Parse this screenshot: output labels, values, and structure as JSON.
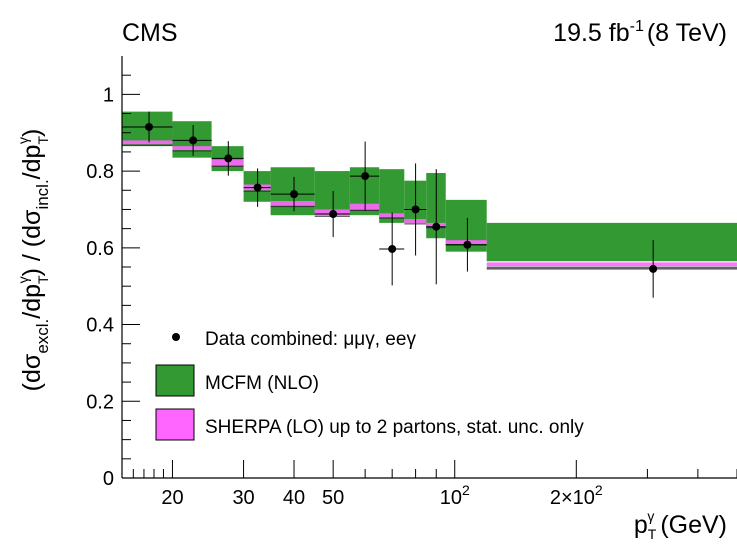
{
  "header": {
    "experiment": "CMS",
    "lumi_value": "19.5 fb",
    "lumi_exponent": "-1",
    "lumi_energy": "(8 TeV)"
  },
  "colors": {
    "mcfm_fill": "#339933",
    "sherpa_fill": "#ff66ff",
    "data_marker": "#000000"
  },
  "chart_data": {
    "type": "scatter",
    "x_scale": "log",
    "xlim": [
      15,
      500
    ],
    "ylim": [
      0,
      1.1
    ],
    "grid": false,
    "legend_placement": "bottom-left",
    "xlabel": {
      "base": "p",
      "sub": "T",
      "sup": "γ",
      "unit": "(GeV)"
    },
    "ylabel": {
      "open1": "(dσ",
      "sub1": "excl.",
      "mid1": "/dp",
      "sub2": "T",
      "sup2": "γ",
      "mid2": ") / (dσ",
      "sub3": "incl.",
      "mid3": "/dp",
      "sub4": "T",
      "sup4": "γ",
      "close": ")"
    },
    "x_ticks": [
      {
        "value": 20,
        "label": "20"
      },
      {
        "value": 30,
        "label": "30"
      },
      {
        "value": 40,
        "label": "40"
      },
      {
        "value": 50,
        "label": "50"
      },
      {
        "value": 100,
        "label": "10",
        "sup": "2"
      },
      {
        "value": 200,
        "label": "2×10",
        "sup": "2"
      }
    ],
    "y_ticks": [
      {
        "value": 0,
        "label": "0"
      },
      {
        "value": 0.2,
        "label": "0.2"
      },
      {
        "value": 0.4,
        "label": "0.4"
      },
      {
        "value": 0.6,
        "label": "0.6"
      },
      {
        "value": 0.8,
        "label": "0.8"
      },
      {
        "value": 1.0,
        "label": "1"
      }
    ],
    "bins": [
      [
        15,
        20
      ],
      [
        20,
        25
      ],
      [
        25,
        30
      ],
      [
        30,
        35
      ],
      [
        35,
        45
      ],
      [
        45,
        55
      ],
      [
        55,
        65
      ],
      [
        65,
        75
      ],
      [
        75,
        85
      ],
      [
        85,
        95
      ],
      [
        95,
        120
      ],
      [
        120,
        500
      ]
    ],
    "series": [
      {
        "name": "Data combined: μμγ, eeγ",
        "kind": "points",
        "x": [
          17.5,
          22.5,
          27.5,
          32.5,
          40,
          50,
          60,
          70,
          80,
          90,
          107.5,
          310
        ],
        "y": [
          0.915,
          0.88,
          0.833,
          0.757,
          0.74,
          0.688,
          0.787,
          0.597,
          0.7,
          0.655,
          0.608,
          0.545
        ],
        "y_err": [
          0.04,
          0.04,
          0.045,
          0.05,
          0.045,
          0.06,
          0.09,
          0.095,
          0.12,
          0.15,
          0.07,
          0.075
        ]
      },
      {
        "name": "MCFM (NLO)",
        "kind": "band",
        "low": [
          0.865,
          0.835,
          0.8,
          0.72,
          0.685,
          0.685,
          0.685,
          0.665,
          0.665,
          0.625,
          0.59,
          0.565
        ],
        "high": [
          0.955,
          0.93,
          0.865,
          0.8,
          0.81,
          0.8,
          0.81,
          0.805,
          0.775,
          0.795,
          0.725,
          0.665
        ]
      },
      {
        "name": "SHERPA (LO) up to 2 partons, stat. unc. only",
        "kind": "band",
        "low": [
          0.87,
          0.855,
          0.815,
          0.75,
          0.71,
          0.685,
          0.7,
          0.68,
          0.665,
          0.655,
          0.61,
          0.552
        ],
        "high": [
          0.88,
          0.865,
          0.83,
          0.765,
          0.722,
          0.7,
          0.715,
          0.69,
          0.675,
          0.665,
          0.62,
          0.562
        ]
      }
    ]
  }
}
